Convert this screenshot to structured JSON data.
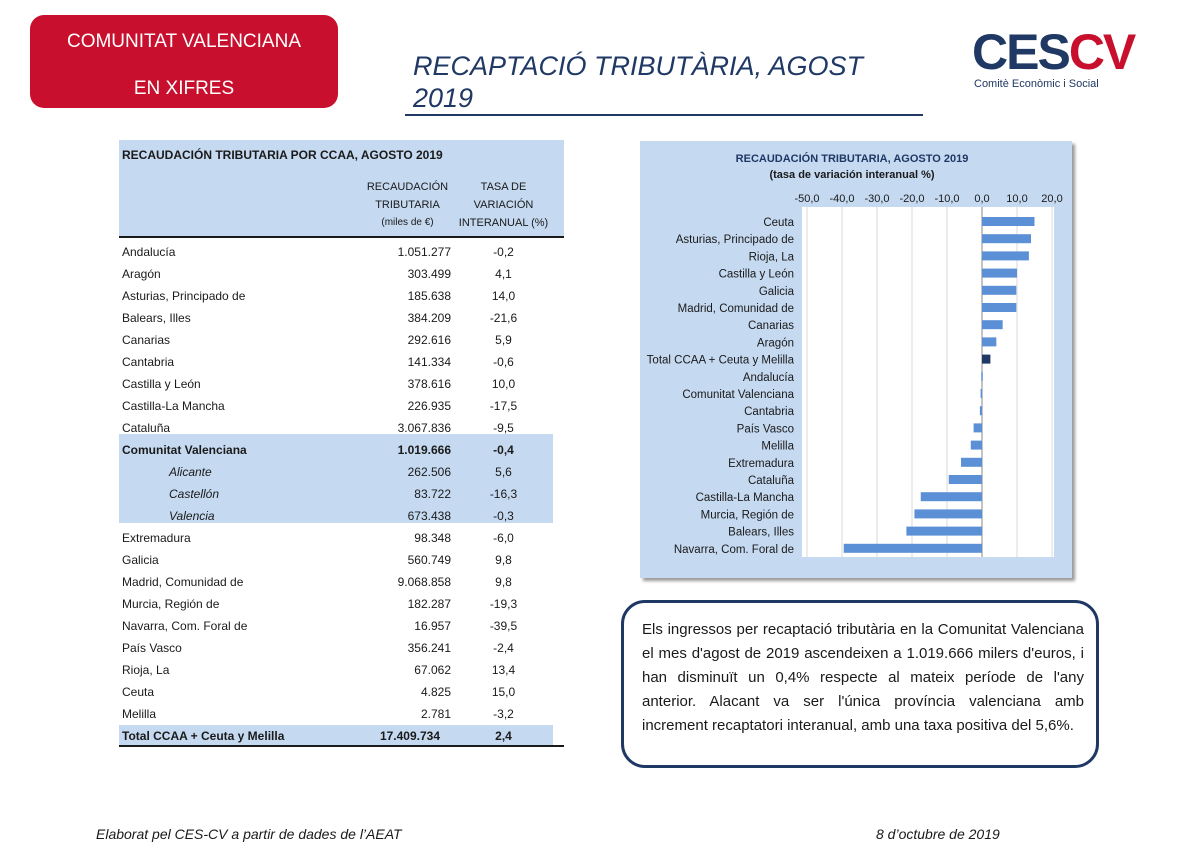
{
  "header": {
    "badge_line1": "COMUNITAT VALENCIANA",
    "badge_line2": "EN XIFRES",
    "title": "RECAPTACIÓ TRIBUTÀRIA, AGOST 2019",
    "logo_main_ces": "CES",
    "logo_main_cv": "CV",
    "logo_sub": "Comitè Econòmic i Social"
  },
  "table": {
    "title": "RECAUDACIÓN TRIBUTARIA POR CCAA, AGOSTO 2019",
    "col1": [
      "RECAUDACIÓN",
      "TRIBUTARIA",
      "(miles de €)"
    ],
    "col2": [
      "TASA DE",
      "VARIACIÓN",
      "INTERANUAL (%)"
    ],
    "rows": [
      {
        "name": "Andalucía",
        "v1": "1.051.277",
        "v2": "-0,2"
      },
      {
        "name": "Aragón",
        "v1": "303.499",
        "v2": "4,1"
      },
      {
        "name": "Asturias, Principado de",
        "v1": "185.638",
        "v2": "14,0"
      },
      {
        "name": "Balears, Illes",
        "v1": "384.209",
        "v2": "-21,6"
      },
      {
        "name": "Canarias",
        "v1": "292.616",
        "v2": "5,9"
      },
      {
        "name": "Cantabria",
        "v1": "141.334",
        "v2": "-0,6"
      },
      {
        "name": "Castilla y León",
        "v1": "378.616",
        "v2": "10,0"
      },
      {
        "name": "Castilla-La Mancha",
        "v1": "226.935",
        "v2": "-17,5"
      },
      {
        "name": "Cataluña",
        "v1": "3.067.836",
        "v2": "-9,5"
      },
      {
        "name": "Comunitat Valenciana",
        "v1": "1.019.666",
        "v2": "-0,4"
      },
      {
        "name": "Alicante",
        "v1": "262.506",
        "v2": "5,6"
      },
      {
        "name": "Castellón",
        "v1": "83.722",
        "v2": "-16,3"
      },
      {
        "name": "Valencia",
        "v1": "673.438",
        "v2": "-0,3"
      },
      {
        "name": "Extremadura",
        "v1": "98.348",
        "v2": "-6,0"
      },
      {
        "name": "Galicia",
        "v1": "560.749",
        "v2": "9,8"
      },
      {
        "name": "Madrid, Comunidad de",
        "v1": "9.068.858",
        "v2": "9,8"
      },
      {
        "name": "Murcia, Región de",
        "v1": "182.287",
        "v2": "-19,3"
      },
      {
        "name": "Navarra, Com. Foral de",
        "v1": "16.957",
        "v2": "-39,5"
      },
      {
        "name": "País Vasco",
        "v1": "356.241",
        "v2": "-2,4"
      },
      {
        "name": "Rioja, La",
        "v1": "67.062",
        "v2": "13,4"
      },
      {
        "name": "Ceuta",
        "v1": "4.825",
        "v2": "15,0"
      },
      {
        "name": "Melilla",
        "v1": "2.781",
        "v2": "-3,2"
      },
      {
        "name": "Total CCAA + Ceuta y Melilla",
        "v1": "17.409.734",
        "v2": "2,4"
      }
    ]
  },
  "chart_data": {
    "type": "bar",
    "orientation": "horizontal",
    "title": "RECAUDACIÓN TRIBUTARIA, AGOSTO 2019",
    "subtitle": "(tasa de variación interanual %)",
    "xlim": [
      -50,
      20
    ],
    "xticks": [
      "-50,0",
      "-40,0",
      "-30,0",
      "-20,0",
      "-10,0",
      "0,0",
      "10,0",
      "20,0"
    ],
    "categories": [
      "Ceuta",
      "Asturias, Principado de",
      "Rioja, La",
      "Castilla y León",
      "Galicia",
      "Madrid, Comunidad de",
      "Canarias",
      "Aragón",
      "Total CCAA + Ceuta y Melilla",
      "Andalucía",
      "Comunitat Valenciana",
      "Cantabria",
      "País Vasco",
      "Melilla",
      "Extremadura",
      "Cataluña",
      "Castilla-La Mancha",
      "Murcia, Región de",
      "Balears, Illes",
      "Navarra, Com. Foral de"
    ],
    "values": [
      15.0,
      14.0,
      13.4,
      10.0,
      9.8,
      9.8,
      5.9,
      4.1,
      2.4,
      -0.2,
      -0.4,
      -0.6,
      -2.4,
      -3.2,
      -6.0,
      -9.5,
      -17.5,
      -19.3,
      -21.6,
      -39.5
    ],
    "bar_color": "#5b8fd6",
    "highlight_color": "#1f3864",
    "highlight_category": "Total CCAA + Ceuta y Melilla",
    "grid": true
  },
  "note": {
    "text": "Els ingressos per recaptació tributària en la Comunitat Valenciana el mes d'agost de 2019 ascendeixen a 1.019.666 milers d'euros, i han disminuït un 0,4% respecte al mateix període de l'any anterior. Alacant va ser l'única província valenciana amb increment recaptatori interanual, amb una taxa positiva del 5,6%."
  },
  "footer": {
    "left": "Elaborat pel CES-CV a partir de dades de l’AEAT",
    "right": "8 d’octubre de 2019"
  }
}
